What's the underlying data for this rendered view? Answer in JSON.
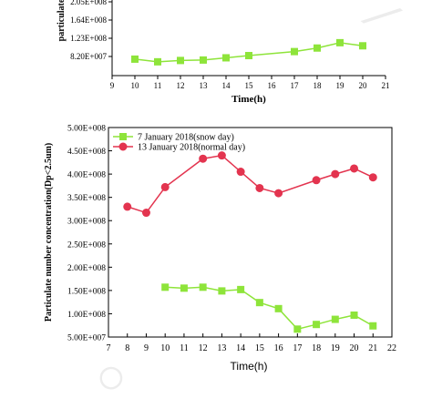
{
  "chart_data": [
    {
      "type": "line",
      "panel": "top",
      "title": "",
      "xlabel": "Time(h)",
      "ylabel": "particulate",
      "xlim": [
        9,
        21
      ],
      "x_ticks": [
        "9",
        "10",
        "11",
        "12",
        "13",
        "14",
        "15",
        "16",
        "17",
        "18",
        "19",
        "20",
        "21"
      ],
      "y_tick_labels": [
        "8.20E+007",
        "1.23E+008",
        "1.64E+008",
        "2.05E+008"
      ],
      "y_tick_values": [
        82000000,
        123000000,
        164000000,
        205000000
      ],
      "series": [
        {
          "name": "",
          "color": "#8ee43a",
          "marker": "square",
          "x": [
            10,
            11,
            12,
            13,
            14,
            15,
            17,
            18,
            19,
            20
          ],
          "y": [
            76000000,
            70000000,
            73000000,
            74000000,
            79000000,
            84000000,
            93000000,
            101000000,
            113000000,
            106000000
          ]
        }
      ]
    },
    {
      "type": "line",
      "panel": "bottom",
      "title": "",
      "xlabel": "Time(h)",
      "ylabel": "Particulate number concentration(Dp<2.5um)",
      "xlim": [
        7,
        22
      ],
      "ylim": [
        50000000,
        500000000
      ],
      "legend_position": "top-left",
      "x_ticks": [
        "7",
        "8",
        "9",
        "10",
        "11",
        "12",
        "13",
        "14",
        "15",
        "16",
        "17",
        "18",
        "19",
        "20",
        "21",
        "22"
      ],
      "y_tick_labels": [
        "5.00E+007",
        "1.00E+008",
        "1.50E+008",
        "2.00E+008",
        "2.50E+008",
        "3.00E+008",
        "3.50E+008",
        "4.00E+008",
        "4.50E+008",
        "5.00E+008"
      ],
      "y_tick_values": [
        50000000,
        100000000,
        150000000,
        200000000,
        250000000,
        300000000,
        350000000,
        400000000,
        450000000,
        500000000
      ],
      "series": [
        {
          "name": "7 January 2018(snow day)",
          "color": "#8ee43a",
          "marker": "square",
          "x": [
            10,
            11,
            12,
            13,
            14,
            15,
            16,
            17,
            18,
            19,
            20,
            21
          ],
          "y": [
            157000000,
            155000000,
            157000000,
            149000000,
            152000000,
            124000000,
            111000000,
            67000000,
            77000000,
            88000000,
            97000000,
            74000000
          ]
        },
        {
          "name": "13 January 2018(normal day)",
          "color": "#e3344f",
          "marker": "circle",
          "x": [
            8,
            9,
            10,
            12,
            13,
            14,
            15,
            16,
            18,
            19,
            20,
            21
          ],
          "y": [
            330000000,
            317000000,
            372000000,
            433000000,
            440000000,
            405000000,
            370000000,
            359000000,
            387000000,
            400000000,
            412000000,
            393000000
          ]
        }
      ]
    }
  ]
}
